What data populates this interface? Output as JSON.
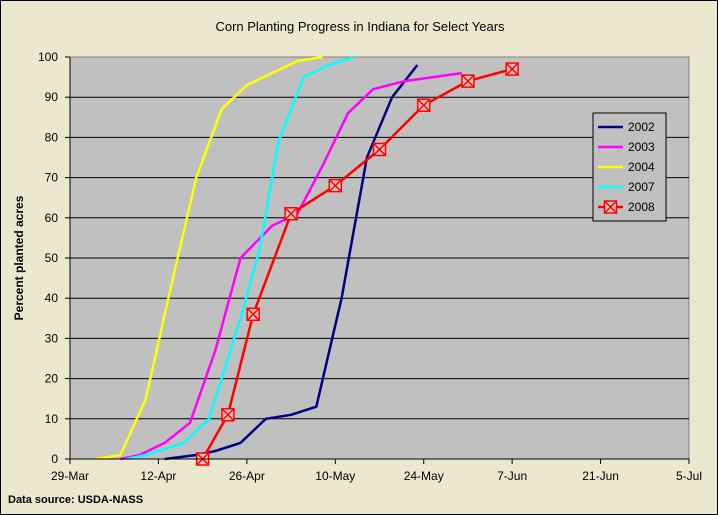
{
  "chart_data": {
    "type": "line",
    "title": "Corn Planting Progress in Indiana for Select Years",
    "ylabel": "Percent planted acres",
    "xlabel": "",
    "source": "Data source: USDA-NASS",
    "ylim": [
      0,
      100
    ],
    "yticks": [
      0,
      10,
      20,
      30,
      40,
      50,
      60,
      70,
      80,
      90,
      100
    ],
    "xlim": [
      0,
      98
    ],
    "xticks": [
      {
        "label": "29-Mar",
        "day": 0
      },
      {
        "label": "12-Apr",
        "day": 14
      },
      {
        "label": "26-Apr",
        "day": 28
      },
      {
        "label": "10-May",
        "day": 42
      },
      {
        "label": "24-May",
        "day": 56
      },
      {
        "label": "7-Jun",
        "day": 70
      },
      {
        "label": "21-Jun",
        "day": 84
      },
      {
        "label": "5-Jul",
        "day": 98
      }
    ],
    "grid": "horizontal",
    "legend": "right",
    "plot_background": "#c0c0c0",
    "series": [
      {
        "name": "2002",
        "color": "#000080",
        "marker": "none",
        "points": [
          [
            15,
            0
          ],
          [
            20,
            1
          ],
          [
            23,
            2
          ],
          [
            27,
            4
          ],
          [
            31,
            10
          ],
          [
            35,
            11
          ],
          [
            39,
            13
          ],
          [
            43,
            40
          ],
          [
            47,
            75
          ],
          [
            51,
            90
          ],
          [
            55,
            98
          ]
        ]
      },
      {
        "name": "2003",
        "color": "#ff00ff",
        "marker": "none",
        "points": [
          [
            8,
            0
          ],
          [
            11,
            1
          ],
          [
            15,
            4
          ],
          [
            19,
            9
          ],
          [
            23,
            27
          ],
          [
            27,
            50
          ],
          [
            32,
            58
          ],
          [
            36,
            61
          ],
          [
            40,
            73
          ],
          [
            44,
            86
          ],
          [
            48,
            92
          ],
          [
            53,
            94
          ],
          [
            62,
            96
          ]
        ]
      },
      {
        "name": "2004",
        "color": "#ffff00",
        "marker": "none",
        "points": [
          [
            4,
            0
          ],
          [
            8,
            1
          ],
          [
            12,
            15
          ],
          [
            16,
            43
          ],
          [
            20,
            70
          ],
          [
            24,
            87
          ],
          [
            28,
            93
          ],
          [
            32,
            96
          ],
          [
            36,
            99
          ],
          [
            40,
            100
          ]
        ]
      },
      {
        "name": "2007",
        "color": "#00ffff",
        "marker": "none",
        "points": [
          [
            9,
            0
          ],
          [
            12,
            1
          ],
          [
            18,
            4
          ],
          [
            22,
            10
          ],
          [
            27,
            35
          ],
          [
            30,
            52
          ],
          [
            33,
            79
          ],
          [
            37,
            95
          ],
          [
            41,
            98
          ],
          [
            45,
            100
          ]
        ]
      },
      {
        "name": "2008",
        "color": "#ff0000",
        "marker": "x-square",
        "points": [
          [
            21,
            0
          ],
          [
            25,
            11
          ],
          [
            29,
            36
          ],
          [
            35,
            61
          ],
          [
            42,
            68
          ],
          [
            49,
            77
          ],
          [
            56,
            88
          ],
          [
            63,
            94
          ],
          [
            70,
            97
          ]
        ]
      }
    ]
  }
}
